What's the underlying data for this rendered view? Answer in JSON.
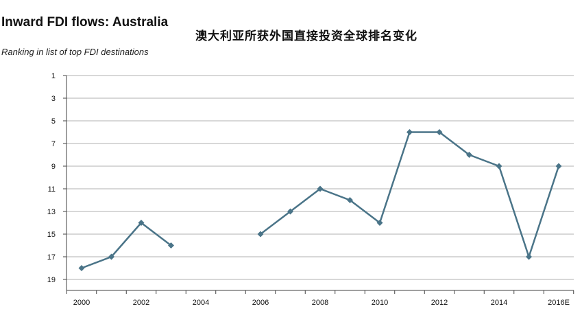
{
  "title": "Inward FDI flows: Australia",
  "cn_title": "澳大利亚所获外国直接投资全球排名变化",
  "subtitle": "Ranking in list of top FDI destinations",
  "colors": {
    "series": "#4a7488",
    "grid": "#b0b0b0",
    "axis": "#404040"
  },
  "chart_data": {
    "type": "line",
    "x_tick_labels": [
      "2000",
      "2002",
      "2004",
      "2006",
      "2008",
      "2010",
      "2012",
      "2014",
      "2016E"
    ],
    "y_tick_labels": [
      "1",
      "3",
      "5",
      "7",
      "9",
      "11",
      "13",
      "15",
      "17",
      "19"
    ],
    "ylim": [
      1,
      20
    ],
    "y_inverted": true,
    "grid": "horizontal",
    "x": [
      "2000",
      "2001",
      "2002",
      "2003",
      "2004",
      "2005",
      "2006",
      "2007",
      "2008",
      "2009",
      "2010",
      "2011",
      "2012",
      "2013",
      "2014",
      "2015",
      "2016E"
    ],
    "series": [
      {
        "values": [
          18,
          17,
          14,
          16,
          null,
          null,
          15,
          13,
          11,
          12,
          14,
          6,
          6,
          8,
          9,
          17,
          9
        ]
      }
    ]
  }
}
